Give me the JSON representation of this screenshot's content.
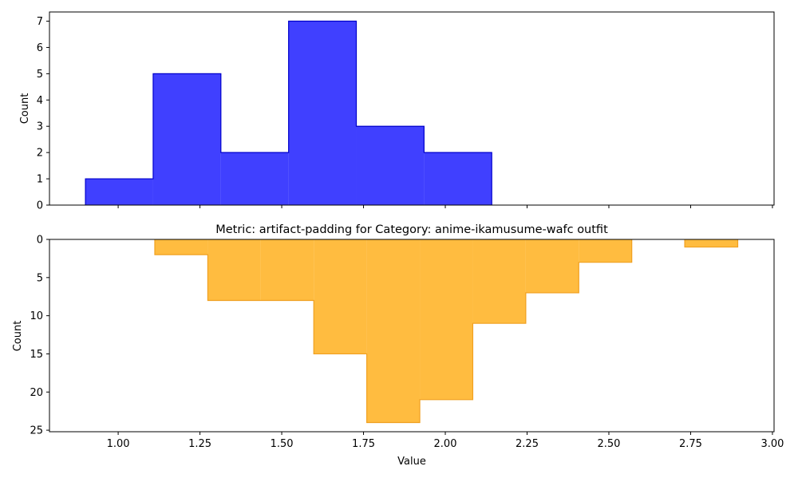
{
  "chart_data": [
    {
      "type": "histogram",
      "title": "",
      "xlabel": "",
      "ylabel": "Count",
      "color": "#0000ff",
      "edge_color": "#0000cc",
      "x_ticks": [
        1.0,
        1.25,
        1.5,
        1.75,
        2.0,
        2.25,
        2.5,
        2.75,
        3.0
      ],
      "y_ticks": [
        0,
        1,
        2,
        3,
        4,
        5,
        6,
        7
      ],
      "y_tick_labels": [
        "0",
        "1",
        "2",
        "3",
        "4",
        "5",
        "6",
        "7"
      ],
      "xlim": [
        0.79,
        3.005
      ],
      "ylim": [
        0,
        7.35
      ],
      "bin_edges": [
        0.9,
        1.107,
        1.314,
        1.521,
        1.728,
        1.935,
        2.142
      ],
      "counts": [
        1,
        5,
        2,
        7,
        3,
        2
      ]
    },
    {
      "type": "histogram",
      "title": "Metric: artifact-padding for Category: anime-ikamusume-wafc outfit",
      "xlabel": "Value",
      "ylabel": "Count",
      "color": "#ffa500",
      "edge_color": "#f0a020",
      "inverted_y": true,
      "x_ticks": [
        1.0,
        1.25,
        1.5,
        1.75,
        2.0,
        2.25,
        2.5,
        2.75,
        3.0
      ],
      "x_tick_labels": [
        "1.00",
        "1.25",
        "1.50",
        "1.75",
        "2.00",
        "2.25",
        "2.50",
        "2.75",
        "3.00"
      ],
      "y_ticks": [
        0,
        5,
        10,
        15,
        20,
        25
      ],
      "y_tick_labels": [
        "0",
        "5",
        "10",
        "15",
        "20",
        "25"
      ],
      "xlim": [
        0.79,
        3.005
      ],
      "ylim": [
        0,
        25.2
      ],
      "bin_edges": [
        1.112,
        1.274,
        1.436,
        1.598,
        1.76,
        1.922,
        2.084,
        2.246,
        2.408,
        2.57,
        2.732,
        2.894
      ],
      "counts": [
        2,
        8,
        8,
        15,
        24,
        21,
        11,
        7,
        3,
        0,
        1
      ]
    }
  ]
}
